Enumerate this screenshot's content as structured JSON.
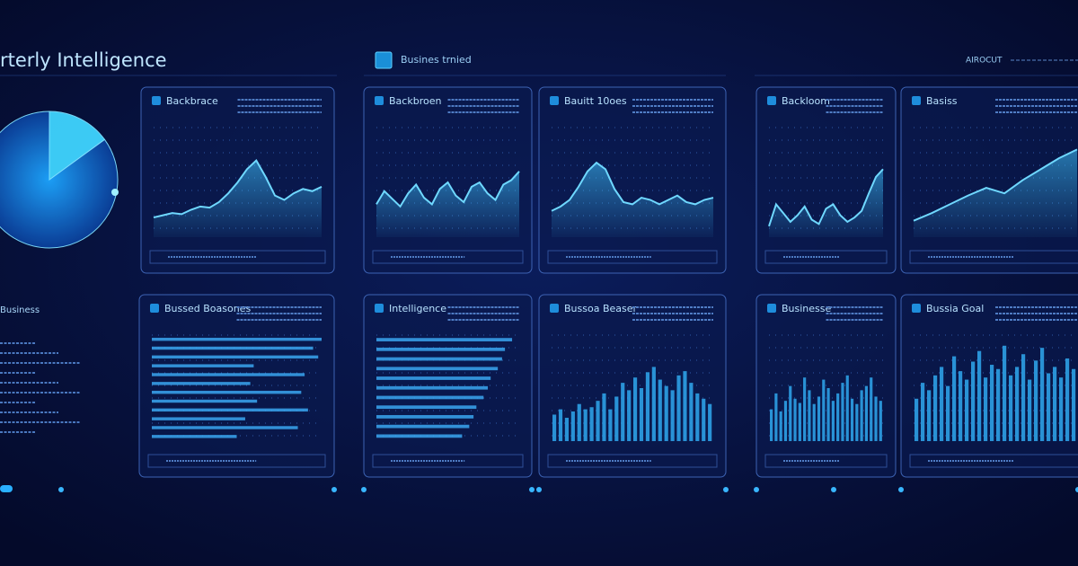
{
  "header": {
    "title": "rterly Intelligence",
    "center_label": "Busines trnied",
    "right_label": "AIROCUT"
  },
  "pie": {
    "values": [
      15,
      85
    ]
  },
  "panels": [
    {
      "title": "Backbrace",
      "type": "line",
      "ylim": [
        0,
        100
      ],
      "values": [
        18,
        20,
        22,
        21,
        25,
        28,
        27,
        32,
        40,
        50,
        62,
        70,
        55,
        38,
        34,
        40,
        44,
        42,
        46
      ]
    },
    {
      "title": "Backbroen",
      "type": "line",
      "ylim": [
        0,
        100
      ],
      "values": [
        30,
        42,
        35,
        28,
        40,
        48,
        36,
        30,
        44,
        50,
        38,
        32,
        46,
        50,
        40,
        34,
        48,
        52,
        60
      ]
    },
    {
      "title": "Bauitt 10oes",
      "type": "line",
      "ylim": [
        0,
        100
      ],
      "values": [
        24,
        28,
        34,
        46,
        60,
        68,
        62,
        44,
        32,
        30,
        36,
        34,
        30,
        34,
        38,
        32,
        30,
        34,
        36
      ]
    },
    {
      "title": "Backloom",
      "type": "line",
      "ylim": [
        0,
        100
      ],
      "values": [
        10,
        30,
        22,
        14,
        20,
        28,
        16,
        12,
        26,
        30,
        20,
        14,
        18,
        24,
        40,
        55,
        62
      ]
    },
    {
      "title": "Basiss",
      "type": "line",
      "ylim": [
        0,
        100
      ],
      "values": [
        15,
        22,
        30,
        38,
        45,
        40,
        52,
        62,
        72,
        80
      ]
    },
    {
      "title": "Bussed Boasones",
      "type": "hbar",
      "ylim": [
        0,
        100
      ],
      "values": [
        100,
        95,
        98,
        60,
        90,
        58,
        88,
        62,
        92,
        55,
        86,
        50
      ]
    },
    {
      "title": "Intelligence",
      "type": "hbar",
      "ylim": [
        0,
        100
      ],
      "values": [
        95,
        90,
        88,
        85,
        80,
        78,
        75,
        70,
        68,
        65,
        60
      ]
    },
    {
      "title": "Bussoa Beaser",
      "type": "bar",
      "ylim": [
        0,
        100
      ],
      "values": [
        25,
        30,
        22,
        28,
        35,
        30,
        32,
        38,
        45,
        30,
        42,
        55,
        48,
        60,
        50,
        65,
        70,
        58,
        52,
        48,
        62,
        66,
        55,
        45,
        40,
        35
      ]
    },
    {
      "title": "Businesse",
      "type": "bar",
      "ylim": [
        0,
        100
      ],
      "values": [
        30,
        45,
        28,
        38,
        52,
        40,
        36,
        60,
        48,
        35,
        42,
        58,
        50,
        38,
        45,
        55,
        62,
        40,
        35,
        48,
        52,
        60,
        42,
        38
      ]
    },
    {
      "title": "Bussia Goal",
      "type": "bar",
      "ylim": [
        0,
        100
      ],
      "values": [
        40,
        55,
        48,
        62,
        70,
        52,
        80,
        66,
        58,
        75,
        85,
        60,
        72,
        68,
        90,
        62,
        70,
        82,
        58,
        76,
        88,
        64,
        70,
        60,
        78,
        68
      ]
    }
  ],
  "side_panel": {
    "title": "Business"
  }
}
